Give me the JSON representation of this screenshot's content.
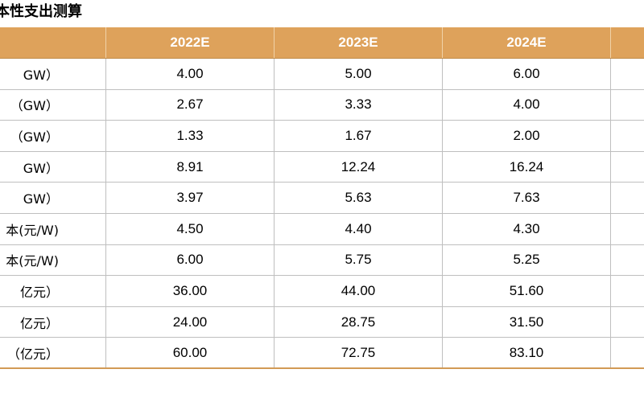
{
  "title": "本性支出测算",
  "table": {
    "headers": [
      "",
      "2022E",
      "2023E",
      "2024E",
      ""
    ],
    "rows": [
      {
        "label": "GW）",
        "v1": "4.00",
        "v2": "5.00",
        "v3": "6.00"
      },
      {
        "label": "（GW）",
        "v1": "2.67",
        "v2": "3.33",
        "v3": "4.00"
      },
      {
        "label": "（GW）",
        "v1": "1.33",
        "v2": "1.67",
        "v3": "2.00"
      },
      {
        "label": "GW）",
        "v1": "8.91",
        "v2": "12.24",
        "v3": "16.24"
      },
      {
        "label": "GW）",
        "v1": "3.97",
        "v2": "5.63",
        "v3": "7.63"
      },
      {
        "label": "本(元/W)",
        "v1": "4.50",
        "v2": "4.40",
        "v3": "4.30"
      },
      {
        "label": "本(元/W)",
        "v1": "6.00",
        "v2": "5.75",
        "v3": "5.25"
      },
      {
        "label": "亿元）",
        "v1": "36.00",
        "v2": "44.00",
        "v3": "51.60"
      },
      {
        "label": "亿元）",
        "v1": "24.00",
        "v2": "28.75",
        "v3": "31.50"
      },
      {
        "label": "（亿元）",
        "v1": "60.00",
        "v2": "72.75",
        "v3": "83.10"
      }
    ]
  },
  "colors": {
    "header_bg": "#dea25b",
    "header_text": "#ffffff",
    "grid": "#bfbfbf",
    "bottom_rule": "#d29a55"
  }
}
